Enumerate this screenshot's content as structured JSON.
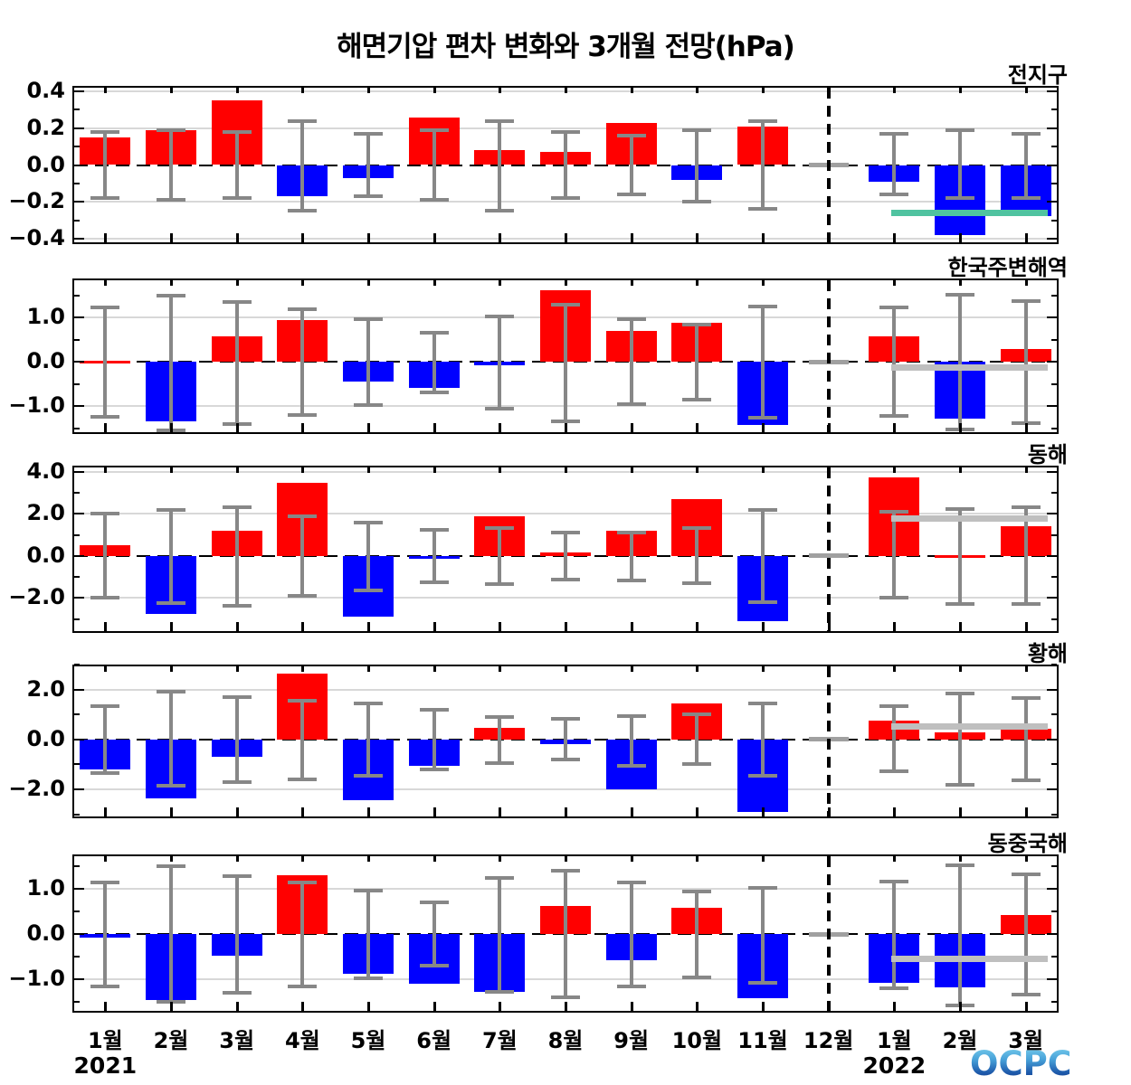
{
  "title": "해면기압 편차 변화와 3개월 전망(hPa)",
  "logo": {
    "text": "OCPC"
  },
  "colors": {
    "bar_positive": "#ff0000",
    "bar_negative": "#0000ff",
    "error_bar": "#878787",
    "december_marker": "#a0a0a0",
    "gridline": "#d8d8d8",
    "forecast_line_global": "#50c3a0",
    "forecast_line_default": "#bfbfbf"
  },
  "chart_data": {
    "type": "bar",
    "title": "해면기압 편차 변화와 3개월 전망(hPa)",
    "unit": "hPa",
    "x_categories": [
      "1월",
      "2월",
      "3월",
      "4월",
      "5월",
      "6월",
      "7월",
      "8월",
      "9월",
      "10월",
      "11월",
      "12월",
      "1월",
      "2월",
      "3월"
    ],
    "year_labels": [
      {
        "text": "2021",
        "month_index": 0
      },
      {
        "text": "2022",
        "month_index": 12
      }
    ],
    "forecast_divider_month_index": 11,
    "legend": "none",
    "grid": "horizontal-major",
    "panels": [
      {
        "name": "전지구",
        "ylim": [
          -0.43,
          0.43
        ],
        "minor_step": 0.1,
        "yticks": [
          {
            "v": 0.4,
            "label": "0.4"
          },
          {
            "v": 0.2,
            "label": "0.2"
          },
          {
            "v": 0.0,
            "label": "0.0"
          },
          {
            "v": -0.2,
            "label": "−0.2"
          },
          {
            "v": -0.4,
            "label": "−0.4"
          }
        ],
        "values": [
          0.15,
          0.19,
          0.35,
          -0.17,
          -0.07,
          0.26,
          0.08,
          0.07,
          0.23,
          -0.08,
          0.21,
          null,
          -0.09,
          -0.38,
          -0.28
        ],
        "err_high": [
          0.18,
          0.19,
          0.18,
          0.24,
          0.17,
          0.19,
          0.24,
          0.18,
          0.16,
          0.19,
          0.24,
          null,
          0.17,
          0.19,
          0.17
        ],
        "err_low": [
          -0.18,
          -0.19,
          -0.18,
          -0.25,
          -0.17,
          -0.19,
          -0.25,
          -0.18,
          -0.16,
          -0.2,
          -0.24,
          null,
          -0.16,
          -0.18,
          -0.18
        ],
        "forecast_line": {
          "value": -0.26,
          "color": "#50c3a0"
        }
      },
      {
        "name": "한국주변해역",
        "ylim": [
          -1.63,
          1.88
        ],
        "minor_step": 0.5,
        "yticks": [
          {
            "v": 1.0,
            "label": "1.0"
          },
          {
            "v": 0.0,
            "label": "0.0"
          },
          {
            "v": -1.0,
            "label": "−1.0"
          }
        ],
        "values": [
          0.03,
          -1.35,
          0.57,
          0.95,
          -0.45,
          -0.58,
          -0.07,
          1.62,
          0.69,
          0.87,
          -1.43,
          null,
          0.58,
          -1.28,
          0.29
        ],
        "err_high": [
          1.22,
          1.5,
          1.35,
          1.18,
          0.96,
          0.66,
          1.03,
          1.29,
          0.96,
          0.84,
          1.24,
          null,
          1.22,
          1.51,
          1.37
        ],
        "err_low": [
          -1.24,
          -1.55,
          -1.4,
          -1.2,
          -0.97,
          -0.69,
          -1.05,
          -1.34,
          -0.96,
          -0.86,
          -1.27,
          null,
          -1.22,
          -1.53,
          -1.39
        ],
        "forecast_line": {
          "value": -0.13,
          "color": "#bfbfbf"
        }
      },
      {
        "name": "동해",
        "ylim": [
          -3.66,
          4.3
        ],
        "minor_step": 1.0,
        "yticks": [
          {
            "v": 4.0,
            "label": "4.0"
          },
          {
            "v": 2.0,
            "label": "2.0"
          },
          {
            "v": 0.0,
            "label": "0.0"
          },
          {
            "v": -2.0,
            "label": "−2.0"
          }
        ],
        "values": [
          0.5,
          -2.75,
          1.2,
          3.5,
          -2.9,
          -0.08,
          1.9,
          0.18,
          1.2,
          2.7,
          -3.1,
          null,
          3.75,
          0.05,
          1.4
        ],
        "err_high": [
          2.0,
          2.2,
          2.3,
          1.9,
          1.6,
          1.25,
          1.35,
          1.1,
          1.1,
          1.35,
          2.2,
          null,
          2.1,
          2.25,
          2.3
        ],
        "err_low": [
          -2.0,
          -2.25,
          -2.35,
          -1.9,
          -1.65,
          -1.25,
          -1.35,
          -1.1,
          -1.15,
          -1.3,
          -2.2,
          null,
          -2.0,
          -2.3,
          -2.3
        ],
        "forecast_line": {
          "value": 1.8,
          "color": "#bfbfbf"
        }
      },
      {
        "name": "황해",
        "ylim": [
          -3.16,
          3.0
        ],
        "minor_step": 1.0,
        "yticks": [
          {
            "v": 2.0,
            "label": "2.0"
          },
          {
            "v": 0.0,
            "label": "0.0"
          },
          {
            "v": -2.0,
            "label": "−2.0"
          }
        ],
        "values": [
          -1.2,
          -2.35,
          -0.7,
          2.65,
          -2.45,
          -1.05,
          0.45,
          -0.18,
          -2.0,
          1.45,
          -2.9,
          null,
          0.75,
          0.3,
          0.42
        ],
        "err_high": [
          1.35,
          1.9,
          1.7,
          1.55,
          1.45,
          1.2,
          0.9,
          0.84,
          0.95,
          1.02,
          1.45,
          null,
          1.35,
          1.85,
          1.67
        ],
        "err_low": [
          -1.35,
          -1.85,
          -1.7,
          -1.6,
          -1.45,
          -1.2,
          -0.95,
          -0.8,
          -1.05,
          -0.98,
          -1.45,
          null,
          -1.27,
          -1.82,
          -1.64
        ],
        "forecast_line": {
          "value": 0.5,
          "color": "#bfbfbf"
        }
      },
      {
        "name": "동중국해",
        "ylim": [
          -1.74,
          1.76
        ],
        "minor_step": 0.5,
        "yticks": [
          {
            "v": 1.0,
            "label": "1.0"
          },
          {
            "v": 0.0,
            "label": "0.0"
          },
          {
            "v": -1.0,
            "label": "−1.0"
          }
        ],
        "values": [
          -0.08,
          -1.45,
          -0.48,
          1.3,
          -0.87,
          -1.1,
          -1.28,
          0.62,
          -0.58,
          0.58,
          -1.42,
          null,
          -1.08,
          -1.18,
          0.42
        ],
        "err_high": [
          1.15,
          1.5,
          1.28,
          1.15,
          0.97,
          0.7,
          1.25,
          1.4,
          1.15,
          0.95,
          1.02,
          null,
          1.16,
          1.52,
          1.32
        ],
        "err_low": [
          -1.15,
          -1.5,
          -1.3,
          -1.15,
          -0.97,
          -0.7,
          -1.27,
          -1.4,
          -1.15,
          -0.95,
          -1.08,
          null,
          -1.2,
          -1.58,
          -1.34
        ],
        "forecast_line": {
          "value": -0.55,
          "color": "#bfbfbf"
        }
      }
    ]
  }
}
